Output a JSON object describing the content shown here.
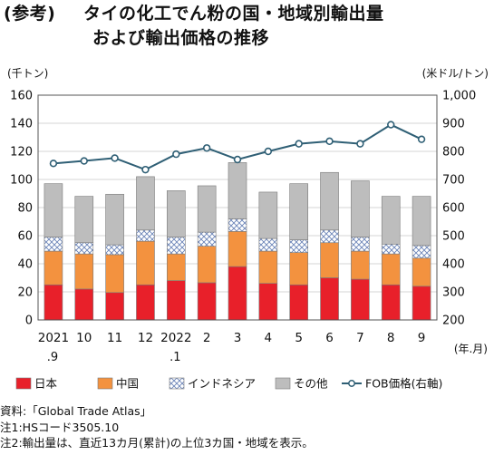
{
  "title": {
    "tag": "(参考)",
    "line1": "タイの化工でん粉の国・地域別輸出量",
    "line2": "および輸出価格の推移"
  },
  "chart_data": {
    "type": "bar",
    "stacked": true,
    "left_unit": "(千トン)",
    "right_unit": "(米ドル/トン)",
    "x_unit": "(年.月)",
    "categories": [
      [
        "2021",
        ".9"
      ],
      [
        "10",
        ""
      ],
      [
        "11",
        ""
      ],
      [
        "12",
        ""
      ],
      [
        "2022",
        ".1"
      ],
      [
        "2",
        ""
      ],
      [
        "3",
        ""
      ],
      [
        "4",
        ""
      ],
      [
        "5",
        ""
      ],
      [
        "6",
        ""
      ],
      [
        "7",
        ""
      ],
      [
        "8",
        ""
      ],
      [
        "9",
        ""
      ]
    ],
    "y_left": {
      "min": 0,
      "max": 160,
      "ticks": [
        0,
        20,
        40,
        60,
        80,
        100,
        120,
        140,
        160
      ]
    },
    "y_right": {
      "min": 200,
      "max": 1000,
      "ticks": [
        "200",
        "300",
        "400",
        "500",
        "600",
        "700",
        "800",
        "900",
        "1,000"
      ]
    },
    "series": [
      {
        "name": "日本",
        "type": "bar",
        "color": "#e8202a",
        "values": [
          25,
          22,
          19.5,
          25,
          28,
          26.5,
          38,
          26,
          25,
          30,
          29,
          25,
          24
        ]
      },
      {
        "name": "中国",
        "type": "bar",
        "color": "#f3923f",
        "values": [
          24,
          25,
          27,
          31,
          19,
          26,
          25,
          23,
          23,
          25,
          20,
          22,
          20
        ]
      },
      {
        "name": "インドネシア",
        "type": "bar",
        "pattern": "hatch",
        "values": [
          10,
          8,
          7,
          8,
          12,
          10,
          9,
          9,
          9,
          9,
          10,
          7,
          9
        ]
      },
      {
        "name": "その他",
        "type": "bar",
        "color": "#bdbdbd",
        "values": [
          38,
          33,
          36,
          38,
          33,
          33,
          40,
          33,
          40,
          41,
          40,
          34,
          35
        ]
      },
      {
        "name": "FOB価格(右軸)",
        "type": "line",
        "axis": "right",
        "color": "#2f5f75",
        "values": [
          757,
          766,
          776,
          735,
          790,
          812,
          771,
          800,
          827,
          836,
          827,
          895,
          843
        ]
      }
    ],
    "legend_position": "bottom"
  },
  "notes": [
    "資料:「Global Trade Atlas」",
    "注1:HSコード3505.10",
    "注2:輸出量は、直近13カ月(累計)の上位3カ国・地域を表示。"
  ]
}
